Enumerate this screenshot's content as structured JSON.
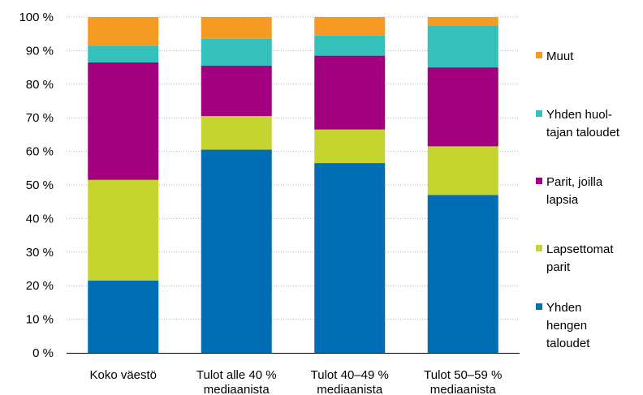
{
  "chart_data": {
    "type": "bar",
    "stacked": true,
    "categories": [
      [
        "Koko väestö"
      ],
      [
        "Tulot alle 40 %",
        "mediaanista"
      ],
      [
        "Tulot 40–49 %",
        "mediaanista"
      ],
      [
        "Tulot 50–59 %",
        "mediaanista"
      ]
    ],
    "series": [
      {
        "name": [
          "Yhden",
          "hengen",
          "taloudet"
        ],
        "color": "#006eb4",
        "values": [
          21.5,
          60.5,
          56.5,
          47
        ]
      },
      {
        "name": [
          "Lapsettomat",
          "parit"
        ],
        "color": "#c5d42f",
        "values": [
          30,
          10,
          10,
          14.5
        ]
      },
      {
        "name": [
          "Parit, joilla",
          "lapsia"
        ],
        "color": "#a3007f",
        "values": [
          35,
          15,
          22,
          23.5
        ]
      },
      {
        "name": [
          "Yhden huol-",
          "tajan taloudet"
        ],
        "color": "#34c1bc",
        "values": [
          5,
          8,
          6,
          12.5
        ]
      },
      {
        "name": [
          "Muut"
        ],
        "color": "#f59a23",
        "values": [
          8.5,
          6.5,
          5.5,
          2.5
        ]
      }
    ],
    "y_ticks": [
      "0 %",
      "10 %",
      "20 %",
      "30 %",
      "40 %",
      "50 %",
      "60 %",
      "70 %",
      "80 %",
      "90 %",
      "100 %"
    ],
    "ylim": [
      0,
      100
    ],
    "grid": true,
    "legend_position": "right",
    "title": "",
    "xlabel": "",
    "ylabel": ""
  }
}
